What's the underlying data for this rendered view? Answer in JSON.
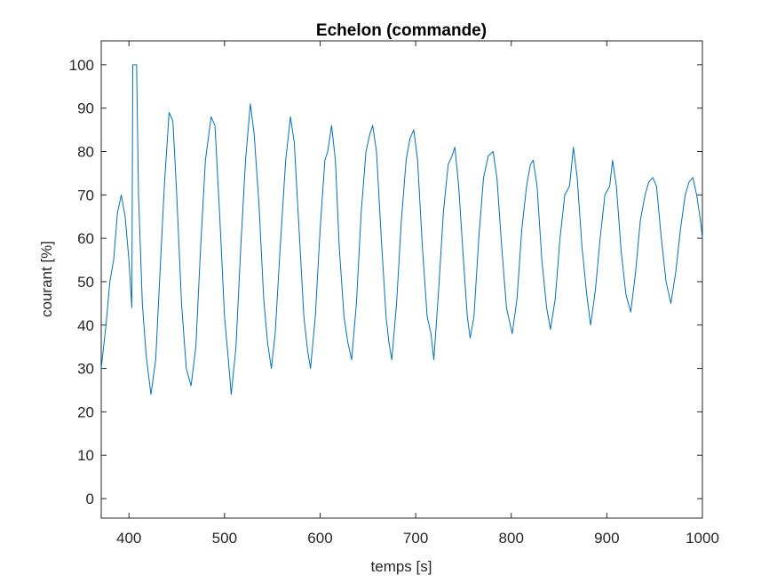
{
  "chart_data": {
    "type": "line",
    "title": "Echelon (commande)",
    "xlabel": "temps [s]",
    "ylabel": "courant [%]",
    "xlim": [
      371,
      1000
    ],
    "ylim": [
      -4.5,
      105.5
    ],
    "xticks": [
      400,
      500,
      600,
      700,
      800,
      900,
      1000
    ],
    "yticks": [
      0,
      10,
      20,
      30,
      40,
      50,
      60,
      70,
      80,
      90,
      100
    ],
    "grid": false,
    "series": [
      {
        "color": "#0072bd",
        "x": [
          371,
          376,
          380,
          384,
          388,
          392,
          396,
          400,
          403,
          404,
          408,
          410,
          414,
          418,
          423,
          428,
          432,
          437,
          442,
          446,
          450,
          455,
          460,
          465,
          470,
          475,
          480,
          486,
          490,
          495,
          500,
          504,
          507,
          512,
          517,
          522,
          527,
          531,
          536,
          541,
          545,
          549,
          553,
          558,
          564,
          569,
          573,
          578,
          583,
          587,
          590,
          595,
          600,
          605,
          608,
          612,
          616,
          620,
          625,
          629,
          633,
          638,
          643,
          648,
          652,
          655,
          659,
          664,
          669,
          672,
          675,
          680,
          685,
          690,
          694,
          698,
          702,
          707,
          712,
          716,
          719,
          724,
          729,
          734,
          738,
          741,
          745,
          750,
          754,
          757,
          761,
          766,
          771,
          776,
          781,
          785,
          790,
          795,
          801,
          806,
          811,
          816,
          820,
          823,
          827,
          832,
          837,
          841,
          846,
          851,
          856,
          861,
          865,
          869,
          874,
          879,
          883,
          888,
          893,
          898,
          903,
          906,
          910,
          915,
          920,
          925,
          930,
          935,
          940,
          944,
          948,
          952,
          957,
          962,
          967,
          972,
          977,
          982,
          986,
          990,
          994,
          998,
          1000
        ],
        "values": [
          30,
          40,
          50,
          55,
          66,
          70,
          65,
          55,
          44,
          100,
          100,
          70,
          45,
          33,
          24,
          32,
          50,
          72,
          89,
          87,
          70,
          45,
          30,
          26,
          35,
          58,
          78,
          88,
          86,
          65,
          42,
          32,
          24,
          35,
          58,
          78,
          91,
          84,
          68,
          46,
          36,
          30,
          38,
          57,
          78,
          88,
          82,
          62,
          42,
          34,
          30,
          42,
          62,
          78,
          80,
          86,
          78,
          58,
          42,
          36,
          32,
          45,
          66,
          80,
          84,
          86,
          80,
          60,
          42,
          36,
          32,
          45,
          64,
          78,
          83,
          85,
          78,
          58,
          42,
          38,
          32,
          48,
          66,
          77,
          79,
          81,
          72,
          55,
          42,
          37,
          42,
          60,
          74,
          79,
          80,
          74,
          58,
          44,
          38,
          46,
          62,
          72,
          77,
          78,
          72,
          55,
          44,
          39,
          46,
          60,
          70,
          72,
          81,
          74,
          58,
          47,
          40,
          48,
          60,
          70,
          72,
          78,
          72,
          57,
          47,
          43,
          52,
          64,
          70,
          73,
          74,
          72,
          60,
          50,
          45,
          52,
          62,
          70,
          73,
          74,
          70,
          64,
          60
        ]
      }
    ]
  }
}
